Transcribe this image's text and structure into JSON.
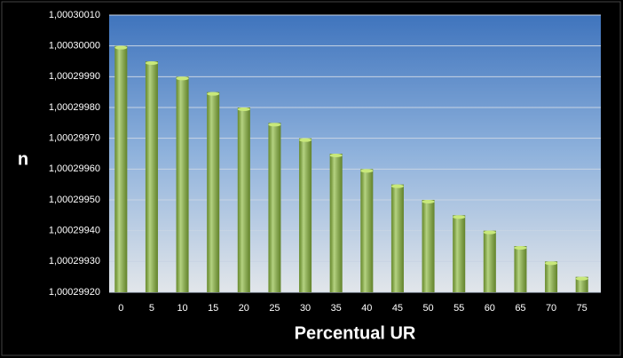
{
  "chart_data": {
    "type": "bar",
    "x_label": "Percentual UR",
    "y_label": "n",
    "categories": [
      "0",
      "5",
      "10",
      "15",
      "20",
      "25",
      "30",
      "35",
      "40",
      "45",
      "50",
      "55",
      "60",
      "65",
      "70",
      "75"
    ],
    "values": [
      1.0003,
      1.00029995,
      1.0002999,
      1.00029985,
      1.0002998,
      1.00029975,
      1.0002997,
      1.00029965,
      1.0002996,
      1.00029955,
      1.0002995,
      1.00029945,
      1.0002994,
      1.00029935,
      1.0002993,
      1.00029925
    ],
    "color": "#8dbb3e",
    "ylim": [
      1.0002992,
      1.0003001
    ],
    "yticks": [
      {
        "value": 1.0002992,
        "label": "1,00029920"
      },
      {
        "value": 1.0002993,
        "label": "1,00029930"
      },
      {
        "value": 1.0002994,
        "label": "1,00029940"
      },
      {
        "value": 1.0002995,
        "label": "1,00029950"
      },
      {
        "value": 1.0002996,
        "label": "1,00029960"
      },
      {
        "value": 1.0002997,
        "label": "1,00029970"
      },
      {
        "value": 1.0002998,
        "label": "1,00029980"
      },
      {
        "value": 1.0002999,
        "label": "1,00029990"
      },
      {
        "value": 1.0003,
        "label": "1,00030000"
      },
      {
        "value": 1.0003001,
        "label": "1,00030010"
      }
    ],
    "grid": true
  }
}
